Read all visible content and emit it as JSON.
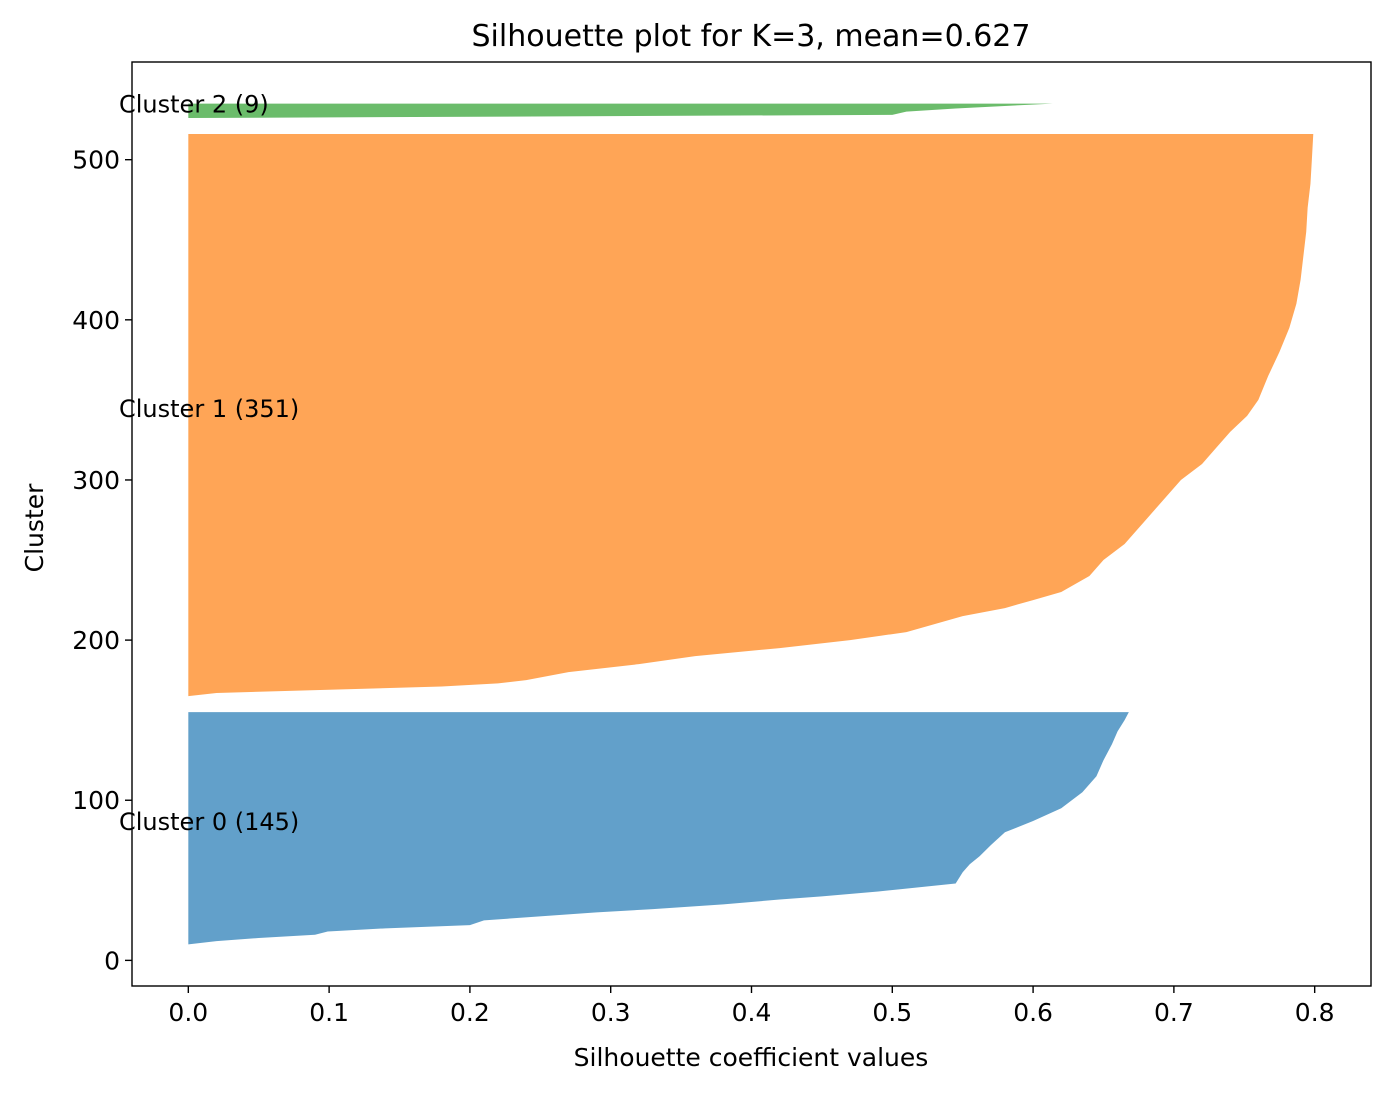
{
  "chart_data": {
    "type": "area",
    "title": "Silhouette plot for K=3, mean=0.627",
    "xlabel": "Silhouette coefficient values",
    "ylabel": "Cluster",
    "xlim": [
      -0.04,
      0.84
    ],
    "ylim": [
      -16,
      561
    ],
    "x_ticks": [
      0.0,
      0.1,
      0.2,
      0.3,
      0.4,
      0.5,
      0.6,
      0.7,
      0.8
    ],
    "x_tick_labels": [
      "0.0",
      "0.1",
      "0.2",
      "0.3",
      "0.4",
      "0.5",
      "0.6",
      "0.7",
      "0.8"
    ],
    "y_ticks": [
      0,
      100,
      200,
      300,
      400,
      500
    ],
    "y_tick_labels": [
      "0",
      "100",
      "200",
      "300",
      "400",
      "500"
    ],
    "grid": false,
    "clusters": [
      {
        "label": "Cluster 0 (145)",
        "size": 145,
        "y_lower": 10,
        "y_upper": 155,
        "label_y": 87,
        "color": "#1f77b4",
        "profile": [
          [
            0,
            0.0
          ],
          [
            2,
            0.02
          ],
          [
            4,
            0.05
          ],
          [
            6,
            0.09
          ],
          [
            8,
            0.099
          ],
          [
            10,
            0.14
          ],
          [
            12,
            0.2
          ],
          [
            15,
            0.21
          ],
          [
            20,
            0.29
          ],
          [
            22,
            0.33
          ],
          [
            25,
            0.38
          ],
          [
            28,
            0.42
          ],
          [
            30,
            0.45
          ],
          [
            33,
            0.49
          ],
          [
            38,
            0.545
          ],
          [
            45,
            0.55
          ],
          [
            50,
            0.555
          ],
          [
            55,
            0.562
          ],
          [
            62,
            0.57
          ],
          [
            70,
            0.58
          ],
          [
            77,
            0.6
          ],
          [
            85,
            0.62
          ],
          [
            95,
            0.635
          ],
          [
            105,
            0.645
          ],
          [
            115,
            0.65
          ],
          [
            125,
            0.656
          ],
          [
            133,
            0.66
          ],
          [
            140,
            0.665
          ],
          [
            145,
            0.668
          ]
        ]
      },
      {
        "label": "Cluster 1 (351)",
        "size": 351,
        "y_lower": 165,
        "y_upper": 516,
        "label_y": 345,
        "color": "#ff7f0e",
        "profile": [
          [
            0,
            0.0
          ],
          [
            2,
            0.02
          ],
          [
            4,
            0.1
          ],
          [
            6,
            0.18
          ],
          [
            8,
            0.22
          ],
          [
            10,
            0.24
          ],
          [
            15,
            0.27
          ],
          [
            20,
            0.32
          ],
          [
            25,
            0.36
          ],
          [
            30,
            0.42
          ],
          [
            35,
            0.47
          ],
          [
            40,
            0.51
          ],
          [
            45,
            0.53
          ],
          [
            50,
            0.55
          ],
          [
            55,
            0.58
          ],
          [
            60,
            0.6
          ],
          [
            65,
            0.62
          ],
          [
            70,
            0.63
          ],
          [
            75,
            0.64
          ],
          [
            85,
            0.65
          ],
          [
            95,
            0.665
          ],
          [
            105,
            0.675
          ],
          [
            115,
            0.685
          ],
          [
            125,
            0.695
          ],
          [
            135,
            0.705
          ],
          [
            145,
            0.72
          ],
          [
            155,
            0.73
          ],
          [
            165,
            0.74
          ],
          [
            175,
            0.752
          ],
          [
            185,
            0.76
          ],
          [
            200,
            0.767
          ],
          [
            215,
            0.775
          ],
          [
            230,
            0.782
          ],
          [
            245,
            0.787
          ],
          [
            260,
            0.79
          ],
          [
            275,
            0.792
          ],
          [
            290,
            0.794
          ],
          [
            305,
            0.795
          ],
          [
            320,
            0.797
          ],
          [
            335,
            0.798
          ],
          [
            351,
            0.799
          ]
        ]
      },
      {
        "label": "Cluster 2 (9)",
        "size": 9,
        "y_lower": 526,
        "y_upper": 535,
        "label_y": 535,
        "color": "#2ca02c",
        "profile": [
          [
            0,
            0.0
          ],
          [
            2,
            0.5
          ],
          [
            4,
            0.51
          ],
          [
            6,
            0.545
          ],
          [
            8,
            0.59
          ],
          [
            9,
            0.614
          ]
        ]
      }
    ]
  }
}
